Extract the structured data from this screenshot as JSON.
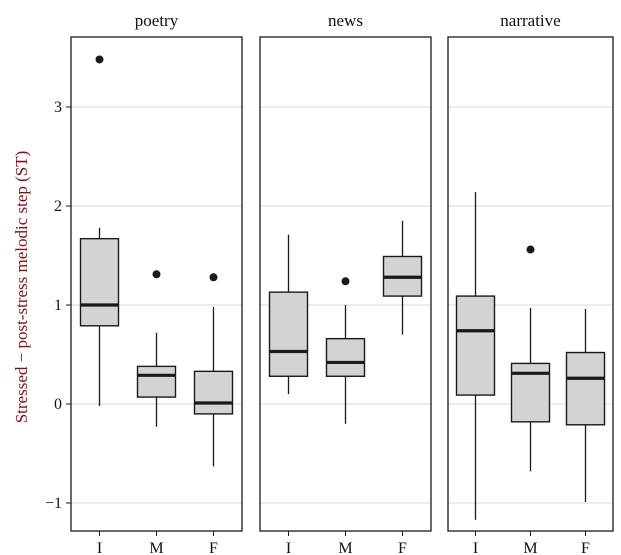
{
  "chart_data": {
    "type": "boxplot",
    "ylabel": "Stressed − post-stress melodic step (ST)",
    "xlabel": "",
    "ylim": [
      -1.3,
      3.7
    ],
    "y_ticks": [
      -1,
      0,
      1,
      2,
      3
    ],
    "y_tick_labels": [
      "−1",
      "0",
      "1",
      "2",
      "3"
    ],
    "grid": "horizontal",
    "categories": [
      "I",
      "M",
      "F"
    ],
    "colors": {
      "box_fill": "#d3d3d3",
      "stroke": "#1a1a1a",
      "grid": "#d9d9d9",
      "ylabel": "#8a0d0d"
    },
    "facets": [
      {
        "name": "poetry",
        "boxes": [
          {
            "category": "I",
            "min": -0.02,
            "q1": 0.79,
            "median": 1.0,
            "q3": 1.67,
            "max": 1.78,
            "outliers": [
              3.48
            ]
          },
          {
            "category": "M",
            "min": -0.23,
            "q1": 0.07,
            "median": 0.29,
            "q3": 0.38,
            "max": 0.72,
            "outliers": [
              1.31
            ]
          },
          {
            "category": "F",
            "min": -0.63,
            "q1": -0.1,
            "median": 0.01,
            "q3": 0.33,
            "max": 0.98,
            "outliers": [
              1.28
            ]
          }
        ]
      },
      {
        "name": "news",
        "boxes": [
          {
            "category": "I",
            "min": 0.1,
            "q1": 0.28,
            "median": 0.53,
            "q3": 1.13,
            "max": 1.71,
            "outliers": []
          },
          {
            "category": "M",
            "min": -0.2,
            "q1": 0.28,
            "median": 0.42,
            "q3": 0.66,
            "max": 1.0,
            "outliers": [
              1.24
            ]
          },
          {
            "category": "F",
            "min": 0.7,
            "q1": 1.09,
            "median": 1.28,
            "q3": 1.49,
            "max": 1.85,
            "outliers": []
          }
        ]
      },
      {
        "name": "narrative",
        "boxes": [
          {
            "category": "I",
            "min": -1.17,
            "q1": 0.09,
            "median": 0.74,
            "q3": 1.09,
            "max": 2.14,
            "outliers": []
          },
          {
            "category": "M",
            "min": -0.68,
            "q1": -0.18,
            "median": 0.31,
            "q3": 0.41,
            "max": 0.97,
            "outliers": [
              1.56
            ]
          },
          {
            "category": "F",
            "min": -0.99,
            "q1": -0.21,
            "median": 0.26,
            "q3": 0.52,
            "max": 0.96,
            "outliers": []
          }
        ]
      }
    ]
  }
}
